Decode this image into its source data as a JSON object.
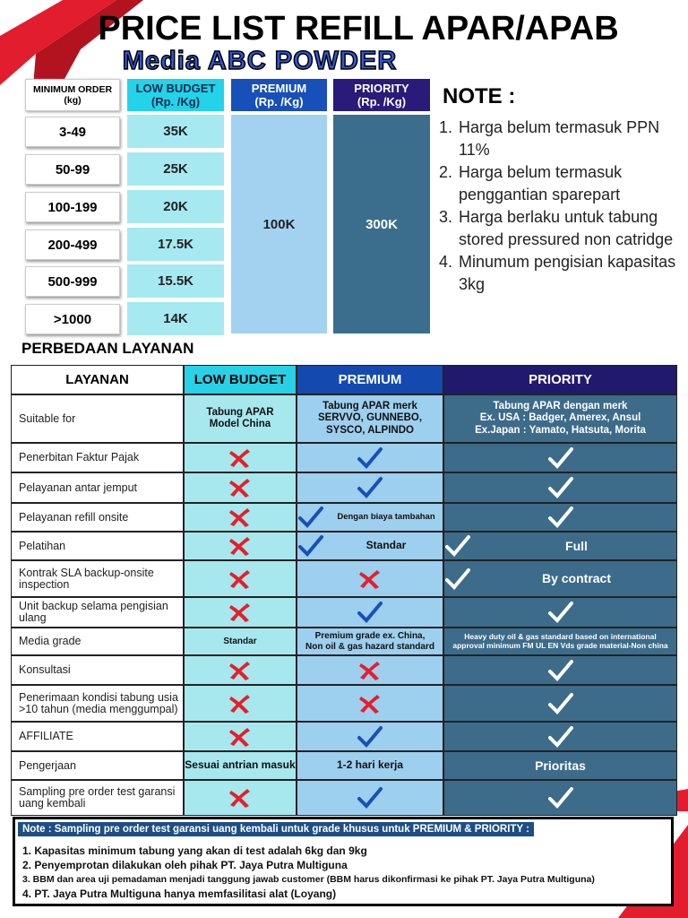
{
  "header": {
    "title": "PRICE LIST REFILL APAR/APAB",
    "subtitle": "Media ABC POWDER"
  },
  "price_table": {
    "columns": [
      {
        "label": "MINIMUM ORDER",
        "unit": "(kg)"
      },
      {
        "label": "LOW BUDGET",
        "unit": "(Rp. /Kg)"
      },
      {
        "label": "PREMIUM",
        "unit": "(Rp. /Kg)"
      },
      {
        "label": "PRIORITY",
        "unit": "(Rp. /Kg)"
      }
    ],
    "min_order": [
      "3-49",
      "50-99",
      "100-199",
      "200-499",
      "500-999",
      ">1000"
    ],
    "low_budget": [
      "35K",
      "25K",
      "20K",
      "17.5K",
      "15.5K",
      "14K"
    ],
    "premium": "100K",
    "priority": "300K"
  },
  "note": {
    "title": "NOTE :",
    "items": [
      {
        "number": "1.",
        "text": "Harga belum termasuk PPN 11%"
      },
      {
        "number": "2.",
        "text": "Harga belum termasuk penggantian sparepart"
      },
      {
        "number": "3.",
        "text": "Harga berlaku untuk tabung stored pressured non catridge"
      },
      {
        "number": "4.",
        "text": "Minumum pengisian kapasitas 3kg"
      }
    ]
  },
  "services": {
    "title": "PERBEDAAN LAYANAN",
    "columns": [
      "LAYANAN",
      "LOW BUDGET",
      "PREMIUM",
      "PRIORITY"
    ],
    "rows": [
      {
        "service": "Suitable for",
        "cells": [
          {
            "text": "Tabung APAR\nModel China"
          },
          {
            "text": "Tabung APAR merk\nSERVVO, GUNNEBO,\nSYSCO, ALPINDO"
          },
          {
            "text": "Tabung APAR dengan merk\nEx. USA : Badger, Amerex, Ansul\nEx.Japan : Yamato, Hatsuta, Morita"
          }
        ]
      },
      {
        "service": "Penerbitan Faktur Pajak",
        "cells": [
          {
            "mark": "cross"
          },
          {
            "mark": "check"
          },
          {
            "mark": "check"
          }
        ]
      },
      {
        "service": "Pelayanan antar jemput",
        "cells": [
          {
            "mark": "cross"
          },
          {
            "mark": "check"
          },
          {
            "mark": "check"
          }
        ]
      },
      {
        "service": "Pelayanan refill onsite",
        "cells": [
          {
            "mark": "cross"
          },
          {
            "mark": "check",
            "text": "Dengan biaya tambahan"
          },
          {
            "mark": "check"
          }
        ]
      },
      {
        "service": "Pelatihan",
        "cells": [
          {
            "mark": "cross"
          },
          {
            "mark": "check",
            "text": "Standar"
          },
          {
            "mark": "check",
            "text": "Full"
          }
        ]
      },
      {
        "service": "Kontrak SLA backup-onsite inspection",
        "cells": [
          {
            "mark": "cross"
          },
          {
            "mark": "cross"
          },
          {
            "mark": "check",
            "text": "By contract"
          }
        ]
      },
      {
        "service": "Unit backup selama pengisian ulang",
        "cells": [
          {
            "mark": "cross"
          },
          {
            "mark": "check"
          },
          {
            "mark": "check"
          }
        ]
      },
      {
        "service": "Media grade",
        "cells": [
          {
            "text": "Standar"
          },
          {
            "text": "Premium grade ex. China,\nNon oil & gas hazard standard"
          },
          {
            "text": "Heavy duty oil & gas standard based on international\napproval minimum FM UL EN Vds grade material-Non china"
          }
        ]
      },
      {
        "service": "Konsultasi",
        "cells": [
          {
            "mark": "cross"
          },
          {
            "mark": "cross"
          },
          {
            "mark": "check"
          }
        ]
      },
      {
        "service": "Penerimaan kondisi tabung usia >10 tahun (media menggumpal)",
        "cells": [
          {
            "mark": "cross"
          },
          {
            "mark": "cross"
          },
          {
            "mark": "check"
          }
        ]
      },
      {
        "service": "AFFILIATE",
        "cells": [
          {
            "mark": "cross"
          },
          {
            "mark": "check"
          },
          {
            "mark": "check"
          }
        ]
      },
      {
        "service": "Pengerjaan",
        "cells": [
          {
            "text": "Sesuai antrian masuk"
          },
          {
            "text": "1-2 hari kerja"
          },
          {
            "text": "Prioritas"
          }
        ]
      },
      {
        "service": "Sampling pre order test garansi uang kembali",
        "cells": [
          {
            "mark": "cross"
          },
          {
            "mark": "check"
          },
          {
            "mark": "check"
          }
        ]
      }
    ]
  },
  "footer": {
    "title": "Note : Sampling pre order test garansi uang kembali untuk grade khusus untuk PREMIUM & PRIORITY :",
    "items": [
      "1. Kapasitas minimum tabung yang akan di test adalah 6kg dan 9kg",
      "2. Penyemprotan dilakukan oleh pihak PT. Jaya Putra Multiguna",
      "3. BBM dan area uji pemadaman menjadi tanggung jawab customer (BBM harus dikonfirmasi ke pihak PT. Jaya Putra Multiguna)",
      "4. PT. Jaya Putra Multiguna hanya memfasilitasi alat (Loyang)"
    ]
  }
}
